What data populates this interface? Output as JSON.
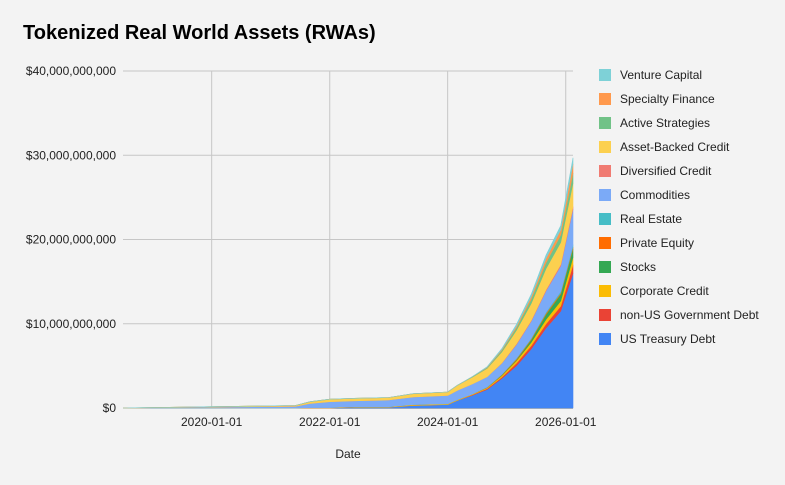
{
  "chart_data": {
    "type": "area",
    "stacked": true,
    "title": "Tokenized Real World Assets (RWAs)",
    "xlabel": "Date",
    "ylabel": "",
    "ylim": [
      0,
      40000000000
    ],
    "yticks": [
      "$0",
      "$10,000,000,000",
      "$20,000,000,000",
      "$30,000,000,000",
      "$40,000,000,000"
    ],
    "ytick_values": [
      0,
      10000000000,
      20000000000,
      30000000000,
      40000000000
    ],
    "xlim": [
      "2018-07-01",
      "2026-02-15"
    ],
    "xticks": [
      "2020-01-01",
      "2022-01-01",
      "2024-01-01",
      "2026-01-01"
    ],
    "grid": true,
    "legend_position": "right",
    "x": [
      "2018-07-01",
      "2021-06-01",
      "2021-09-01",
      "2022-01-01",
      "2022-06-01",
      "2023-01-01",
      "2023-06-01",
      "2024-01-01",
      "2024-03-01",
      "2024-06-01",
      "2024-09-01",
      "2024-12-01",
      "2025-03-01",
      "2025-06-01",
      "2025-09-01",
      "2025-12-01",
      "2026-02-15"
    ],
    "series": [
      {
        "name": "US Treasury Debt",
        "color": "#4285f4",
        "values": [
          0,
          0,
          0,
          0,
          0.1,
          0.1,
          0.3,
          0.4,
          0.9,
          1.5,
          2.2,
          3.5,
          5.0,
          7.0,
          9.5,
          11.5,
          16.0
        ]
      },
      {
        "name": "non-US Government Debt",
        "color": "#ea4335",
        "values": [
          0,
          0,
          0,
          0,
          0,
          0,
          0,
          0,
          0,
          0.05,
          0.1,
          0.15,
          0.3,
          0.4,
          0.5,
          0.6,
          1.0
        ]
      },
      {
        "name": "Corporate Credit",
        "color": "#fbbc04",
        "values": [
          0,
          0,
          0.05,
          0.05,
          0.05,
          0.05,
          0.1,
          0.1,
          0.1,
          0.1,
          0.1,
          0.2,
          0.3,
          0.4,
          0.5,
          0.6,
          0.9
        ]
      },
      {
        "name": "Stocks",
        "color": "#34a853",
        "values": [
          0,
          0,
          0,
          0,
          0,
          0,
          0,
          0,
          0,
          0,
          0,
          0.05,
          0.1,
          0.3,
          0.6,
          0.8,
          1.0
        ]
      },
      {
        "name": "Private Equity",
        "color": "#ff6d01",
        "values": [
          0,
          0,
          0,
          0,
          0,
          0,
          0,
          0,
          0,
          0,
          0.05,
          0.05,
          0.1,
          0.1,
          0.15,
          0.15,
          0.2
        ]
      },
      {
        "name": "Real Estate",
        "color": "#46bdc6",
        "values": [
          0,
          0,
          0,
          0,
          0,
          0,
          0,
          0,
          0,
          0,
          0.05,
          0.05,
          0.1,
          0.1,
          0.15,
          0.2,
          0.3
        ]
      },
      {
        "name": "Commodities",
        "color": "#7baaf7",
        "values": [
          0,
          0.2,
          0.5,
          0.7,
          0.7,
          0.8,
          0.9,
          1.0,
          1.1,
          1.2,
          1.2,
          1.3,
          1.6,
          2.0,
          2.5,
          3.0,
          4.2
        ]
      },
      {
        "name": "Diversified Credit",
        "color": "#f07b72",
        "values": [
          0,
          0,
          0,
          0,
          0,
          0,
          0,
          0,
          0,
          0,
          0,
          0.05,
          0.1,
          0.1,
          0.15,
          0.2,
          0.3
        ]
      },
      {
        "name": "Asset-Backed Credit",
        "color": "#fcd04f",
        "values": [
          0,
          0.1,
          0.2,
          0.3,
          0.3,
          0.3,
          0.4,
          0.4,
          0.6,
          0.8,
          1.0,
          1.3,
          1.6,
          2.0,
          2.5,
          2.6,
          2.8
        ]
      },
      {
        "name": "Active Strategies",
        "color": "#71c287",
        "values": [
          0,
          0,
          0,
          0,
          0,
          0,
          0,
          0,
          0,
          0.05,
          0.1,
          0.2,
          0.3,
          0.5,
          0.7,
          0.9,
          1.2
        ]
      },
      {
        "name": "Specialty Finance",
        "color": "#ff994d",
        "values": [
          0,
          0,
          0,
          0,
          0,
          0,
          0,
          0,
          0,
          0,
          0.05,
          0.1,
          0.2,
          0.3,
          0.5,
          0.6,
          1.1
        ]
      },
      {
        "name": "Venture Capital",
        "color": "#7ed1d7",
        "values": [
          0,
          0,
          0,
          0,
          0,
          0,
          0,
          0,
          0,
          0,
          0.05,
          0.1,
          0.2,
          0.3,
          0.4,
          0.5,
          0.7
        ]
      }
    ],
    "value_unit_multiplier": 1000000000
  }
}
